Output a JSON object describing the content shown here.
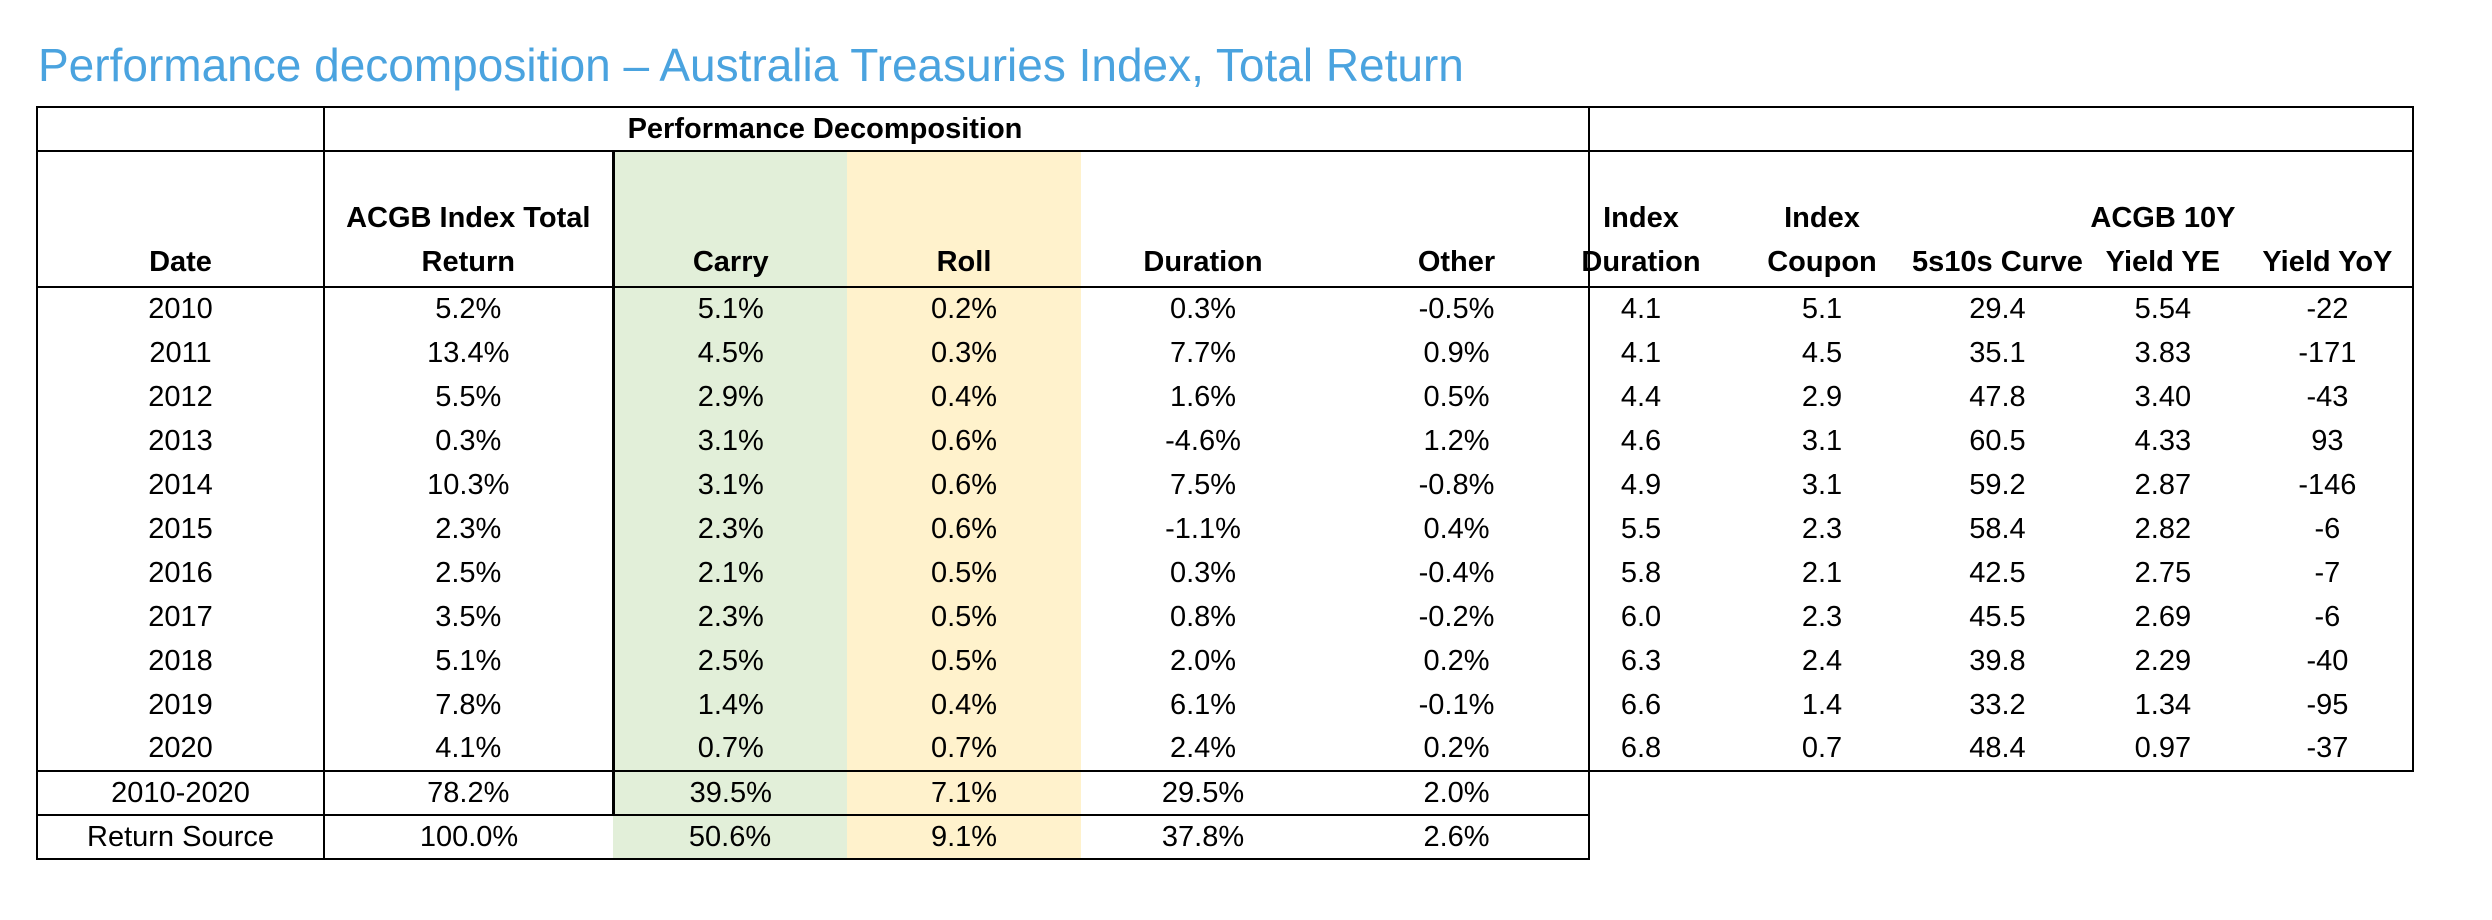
{
  "title": "Performance decomposition – Australia Treasuries Index, Total Return",
  "perf_table": {
    "group_header": "Performance Decomposition",
    "columns": {
      "date": "Date",
      "total_return": [
        "ACGB Index Total",
        "Return"
      ],
      "carry": "Carry",
      "roll": "Roll",
      "duration": "Duration",
      "other": "Other"
    },
    "rows": [
      {
        "date": "2010",
        "total_return": "5.2%",
        "carry": "5.1%",
        "roll": "0.2%",
        "duration": "0.3%",
        "other": "-0.5%"
      },
      {
        "date": "2011",
        "total_return": "13.4%",
        "carry": "4.5%",
        "roll": "0.3%",
        "duration": "7.7%",
        "other": "0.9%"
      },
      {
        "date": "2012",
        "total_return": "5.5%",
        "carry": "2.9%",
        "roll": "0.4%",
        "duration": "1.6%",
        "other": "0.5%"
      },
      {
        "date": "2013",
        "total_return": "0.3%",
        "carry": "3.1%",
        "roll": "0.6%",
        "duration": "-4.6%",
        "other": "1.2%"
      },
      {
        "date": "2014",
        "total_return": "10.3%",
        "carry": "3.1%",
        "roll": "0.6%",
        "duration": "7.5%",
        "other": "-0.8%"
      },
      {
        "date": "2015",
        "total_return": "2.3%",
        "carry": "2.3%",
        "roll": "0.6%",
        "duration": "-1.1%",
        "other": "0.4%"
      },
      {
        "date": "2016",
        "total_return": "2.5%",
        "carry": "2.1%",
        "roll": "0.5%",
        "duration": "0.3%",
        "other": "-0.4%"
      },
      {
        "date": "2017",
        "total_return": "3.5%",
        "carry": "2.3%",
        "roll": "0.5%",
        "duration": "0.8%",
        "other": "-0.2%"
      },
      {
        "date": "2018",
        "total_return": "5.1%",
        "carry": "2.5%",
        "roll": "0.5%",
        "duration": "2.0%",
        "other": "0.2%"
      },
      {
        "date": "2019",
        "total_return": "7.8%",
        "carry": "1.4%",
        "roll": "0.4%",
        "duration": "6.1%",
        "other": "-0.1%"
      },
      {
        "date": "2020",
        "total_return": "4.1%",
        "carry": "0.7%",
        "roll": "0.7%",
        "duration": "2.4%",
        "other": "0.2%"
      }
    ],
    "total_row": {
      "date": "2010-2020",
      "total_return": "78.2%",
      "carry": "39.5%",
      "roll": "7.1%",
      "duration": "29.5%",
      "other": "2.0%"
    },
    "source_row": {
      "date": "Return Source",
      "total_return": "100.0%",
      "carry": "50.6%",
      "roll": "9.1%",
      "duration": "37.8%",
      "other": "2.6%"
    }
  },
  "stats_table": {
    "columns": {
      "index_duration": [
        "Index",
        "Duration"
      ],
      "index_coupon": [
        "Index",
        "Coupon"
      ],
      "curve": "5s10s Curve",
      "yield_ye": [
        "ACGB 10Y",
        "Yield YE"
      ],
      "yield_yoy": "Yield YoY"
    },
    "rows": [
      {
        "index_duration": "4.1",
        "index_coupon": "5.1",
        "curve": "29.4",
        "yield_ye": "5.54",
        "yield_yoy": "-22"
      },
      {
        "index_duration": "4.1",
        "index_coupon": "4.5",
        "curve": "35.1",
        "yield_ye": "3.83",
        "yield_yoy": "-171"
      },
      {
        "index_duration": "4.4",
        "index_coupon": "2.9",
        "curve": "47.8",
        "yield_ye": "3.40",
        "yield_yoy": "-43"
      },
      {
        "index_duration": "4.6",
        "index_coupon": "3.1",
        "curve": "60.5",
        "yield_ye": "4.33",
        "yield_yoy": "93"
      },
      {
        "index_duration": "4.9",
        "index_coupon": "3.1",
        "curve": "59.2",
        "yield_ye": "2.87",
        "yield_yoy": "-146"
      },
      {
        "index_duration": "5.5",
        "index_coupon": "2.3",
        "curve": "58.4",
        "yield_ye": "2.82",
        "yield_yoy": "-6"
      },
      {
        "index_duration": "5.8",
        "index_coupon": "2.1",
        "curve": "42.5",
        "yield_ye": "2.75",
        "yield_yoy": "-7"
      },
      {
        "index_duration": "6.0",
        "index_coupon": "2.3",
        "curve": "45.5",
        "yield_ye": "2.69",
        "yield_yoy": "-6"
      },
      {
        "index_duration": "6.3",
        "index_coupon": "2.4",
        "curve": "39.8",
        "yield_ye": "2.29",
        "yield_yoy": "-40"
      },
      {
        "index_duration": "6.6",
        "index_coupon": "1.4",
        "curve": "33.2",
        "yield_ye": "1.34",
        "yield_yoy": "-95"
      },
      {
        "index_duration": "6.8",
        "index_coupon": "0.7",
        "curve": "48.4",
        "yield_ye": "0.97",
        "yield_yoy": "-37"
      }
    ]
  },
  "colors": {
    "title": "#4aa3df",
    "carry_fill": "#e2efd9",
    "roll_fill": "#fff2cc"
  }
}
